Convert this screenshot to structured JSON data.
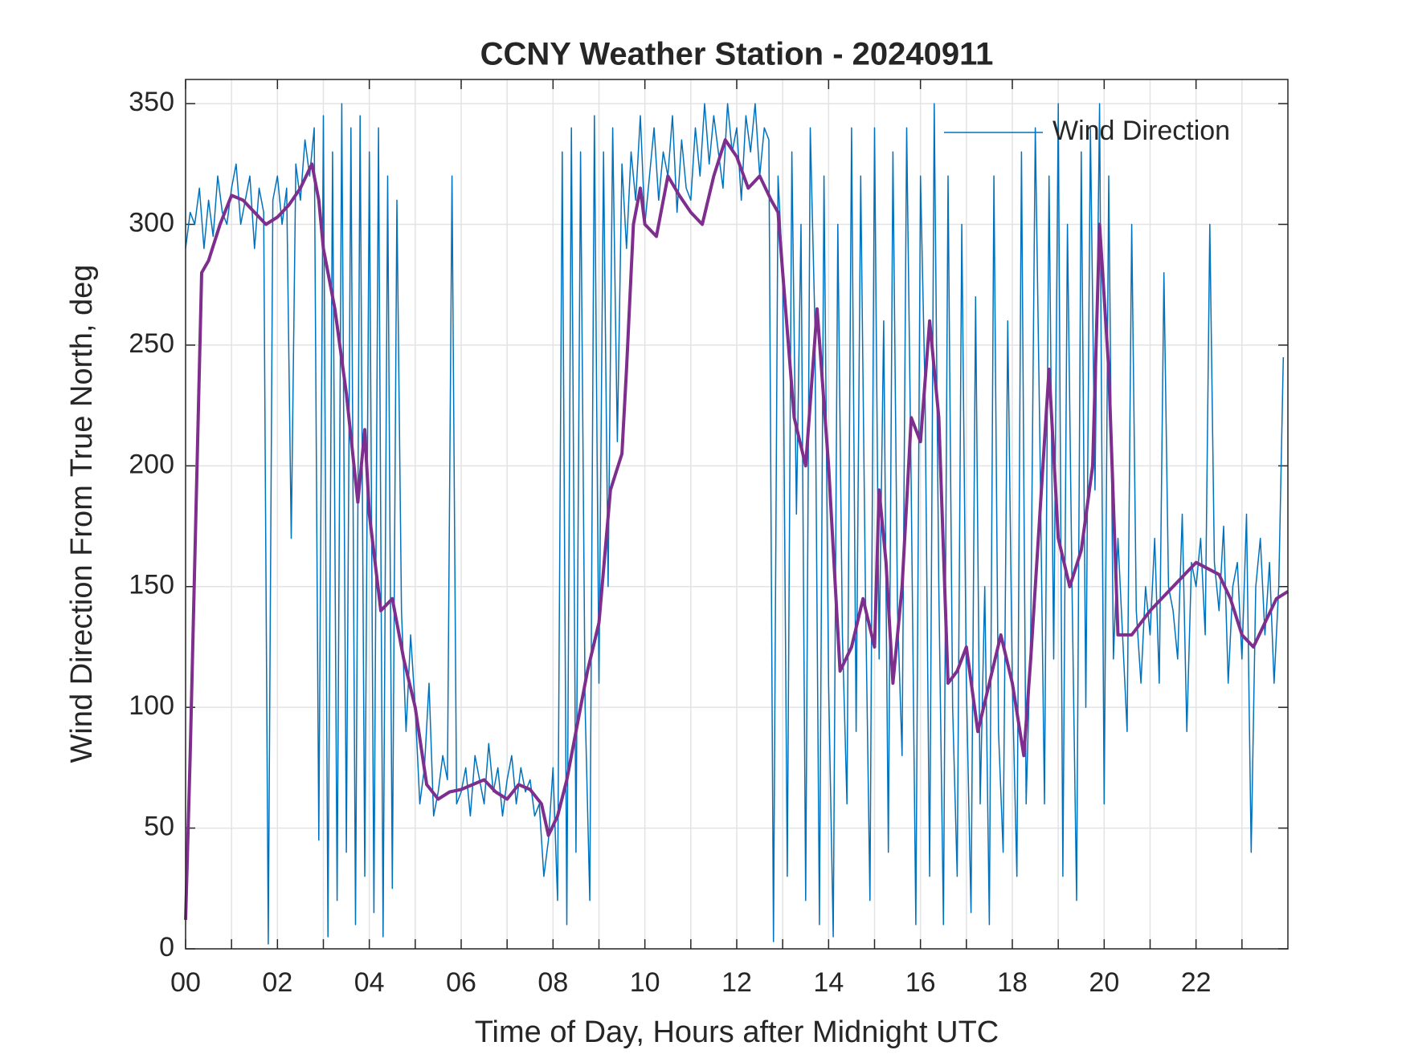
{
  "chart_data": {
    "type": "line",
    "title": "CCNY Weather Station - 20240911",
    "xlabel": "Time of Day, Hours after Midnight UTC",
    "ylabel": "Wind Direction From True North, deg",
    "xlim": [
      0,
      24
    ],
    "ylim": [
      0,
      360
    ],
    "xticks": [
      {
        "value": 0,
        "label": "00"
      },
      {
        "value": 2,
        "label": "02"
      },
      {
        "value": 4,
        "label": "04"
      },
      {
        "value": 6,
        "label": "06"
      },
      {
        "value": 8,
        "label": "08"
      },
      {
        "value": 10,
        "label": "10"
      },
      {
        "value": 12,
        "label": "12"
      },
      {
        "value": 14,
        "label": "14"
      },
      {
        "value": 16,
        "label": "16"
      },
      {
        "value": 18,
        "label": "18"
      },
      {
        "value": 20,
        "label": "20"
      },
      {
        "value": 22,
        "label": "22"
      }
    ],
    "xminor_ticks": [
      1,
      3,
      5,
      7,
      9,
      11,
      13,
      15,
      17,
      19,
      21,
      23
    ],
    "yticks": [
      0,
      50,
      100,
      150,
      200,
      250,
      300,
      350
    ],
    "grid": true,
    "legend": "upper right",
    "series": [
      {
        "name": "Wind Direction",
        "color": "#0072BD",
        "width": 1.5,
        "x": [
          0,
          0.1,
          0.2,
          0.3,
          0.4,
          0.5,
          0.6,
          0.7,
          0.8,
          0.9,
          1,
          1.1,
          1.2,
          1.3,
          1.4,
          1.5,
          1.6,
          1.7,
          1.8,
          1.9,
          2,
          2.1,
          2.2,
          2.3,
          2.4,
          2.5,
          2.6,
          2.7,
          2.8,
          2.9,
          3,
          3.1,
          3.2,
          3.3,
          3.4,
          3.5,
          3.6,
          3.7,
          3.8,
          3.9,
          4,
          4.1,
          4.2,
          4.3,
          4.4,
          4.5,
          4.6,
          4.7,
          4.8,
          4.9,
          5,
          5.1,
          5.2,
          5.3,
          5.4,
          5.5,
          5.6,
          5.7,
          5.8,
          5.9,
          6,
          6.1,
          6.2,
          6.3,
          6.4,
          6.5,
          6.6,
          6.7,
          6.8,
          6.9,
          7,
          7.1,
          7.2,
          7.3,
          7.4,
          7.5,
          7.6,
          7.7,
          7.8,
          7.9,
          8,
          8.1,
          8.2,
          8.3,
          8.4,
          8.5,
          8.6,
          8.7,
          8.8,
          8.9,
          9,
          9.1,
          9.2,
          9.3,
          9.4,
          9.5,
          9.6,
          9.7,
          9.8,
          9.9,
          10,
          10.1,
          10.2,
          10.3,
          10.4,
          10.5,
          10.6,
          10.7,
          10.8,
          10.9,
          11,
          11.1,
          11.2,
          11.3,
          11.4,
          11.5,
          11.6,
          11.7,
          11.8,
          11.9,
          12,
          12.1,
          12.2,
          12.3,
          12.4,
          12.5,
          12.6,
          12.7,
          12.8,
          12.9,
          13,
          13.1,
          13.2,
          13.3,
          13.4,
          13.5,
          13.6,
          13.7,
          13.8,
          13.9,
          14,
          14.1,
          14.2,
          14.3,
          14.4,
          14.5,
          14.6,
          14.7,
          14.8,
          14.9,
          15,
          15.1,
          15.2,
          15.3,
          15.4,
          15.5,
          15.6,
          15.7,
          15.8,
          15.9,
          16,
          16.1,
          16.2,
          16.3,
          16.4,
          16.5,
          16.6,
          16.7,
          16.8,
          16.9,
          17,
          17.1,
          17.2,
          17.3,
          17.4,
          17.5,
          17.6,
          17.7,
          17.8,
          17.9,
          18,
          18.1,
          18.2,
          18.3,
          18.4,
          18.5,
          18.6,
          18.7,
          18.8,
          18.9,
          19,
          19.1,
          19.2,
          19.3,
          19.4,
          19.5,
          19.6,
          19.7,
          19.8,
          19.9,
          20,
          20.1,
          20.2,
          20.3,
          20.4,
          20.5,
          20.6,
          20.7,
          20.8,
          20.9,
          21,
          21.1,
          21.2,
          21.3,
          21.4,
          21.5,
          21.6,
          21.7,
          21.8,
          21.9,
          22,
          22.1,
          22.2,
          22.3,
          22.4,
          22.5,
          22.6,
          22.7,
          22.8,
          22.9,
          23,
          23.1,
          23.2,
          23.3,
          23.4,
          23.5,
          23.6,
          23.7,
          23.8,
          23.9
        ],
        "values": [
          290,
          305,
          300,
          315,
          290,
          310,
          295,
          320,
          305,
          300,
          315,
          325,
          300,
          310,
          320,
          290,
          315,
          305,
          2,
          310,
          320,
          300,
          315,
          170,
          325,
          310,
          335,
          320,
          340,
          45,
          345,
          5,
          330,
          20,
          350,
          40,
          340,
          10,
          345,
          30,
          330,
          15,
          340,
          5,
          320,
          25,
          310,
          140,
          90,
          130,
          100,
          60,
          75,
          110,
          55,
          65,
          80,
          70,
          320,
          60,
          65,
          75,
          55,
          80,
          70,
          60,
          85,
          65,
          75,
          55,
          70,
          80,
          60,
          75,
          65,
          70,
          55,
          60,
          30,
          45,
          75,
          20,
          330,
          10,
          340,
          40,
          330,
          100,
          20,
          345,
          110,
          330,
          150,
          340,
          210,
          325,
          290,
          330,
          310,
          345,
          300,
          320,
          340,
          310,
          330,
          320,
          345,
          305,
          335,
          315,
          310,
          340,
          320,
          350,
          325,
          345,
          330,
          315,
          350,
          330,
          340,
          310,
          345,
          330,
          350,
          320,
          340,
          335,
          3,
          320,
          280,
          30,
          330,
          180,
          300,
          20,
          340,
          260,
          10,
          320,
          110,
          5,
          300,
          130,
          60,
          340,
          90,
          320,
          150,
          20,
          340,
          120,
          260,
          40,
          330,
          140,
          80,
          340,
          190,
          10,
          320,
          230,
          30,
          350,
          150,
          10,
          320,
          100,
          30,
          300,
          110,
          15,
          270,
          60,
          150,
          10,
          320,
          90,
          40,
          260,
          110,
          30,
          330,
          60,
          130,
          340,
          210,
          60,
          320,
          120,
          350,
          30,
          300,
          150,
          20,
          330,
          100,
          340,
          190,
          350,
          60,
          320,
          120,
          170,
          130,
          90,
          300,
          140,
          110,
          150,
          130,
          170,
          110,
          280,
          150,
          140,
          120,
          180,
          90,
          160,
          150,
          170,
          130,
          300,
          160,
          140,
          175,
          110,
          150,
          160,
          120,
          180,
          40,
          150,
          170,
          130,
          160,
          110,
          150,
          245
        ]
      },
      {
        "color": "#7E2F8E",
        "width": 4,
        "x": [
          0,
          0.1,
          0.2,
          0.35,
          0.5,
          0.75,
          1,
          1.25,
          1.5,
          1.75,
          2,
          2.25,
          2.5,
          2.75,
          2.9,
          3,
          3.25,
          3.5,
          3.75,
          3.9,
          4,
          4.25,
          4.5,
          4.75,
          5,
          5.25,
          5.5,
          5.75,
          6,
          6.25,
          6.5,
          6.75,
          7,
          7.25,
          7.5,
          7.75,
          7.9,
          8.1,
          8.3,
          8.5,
          8.75,
          9,
          9.25,
          9.5,
          9.6,
          9.75,
          9.9,
          10,
          10.25,
          10.5,
          10.75,
          11,
          11.25,
          11.5,
          11.75,
          12,
          12.25,
          12.5,
          12.75,
          12.9,
          13,
          13.25,
          13.5,
          13.75,
          14,
          14.25,
          14.5,
          14.75,
          15,
          15.1,
          15.25,
          15.4,
          15.6,
          15.8,
          16,
          16.2,
          16.4,
          16.6,
          16.8,
          17,
          17.25,
          17.5,
          17.75,
          18,
          18.25,
          18.4,
          18.6,
          18.8,
          19,
          19.25,
          19.5,
          19.75,
          19.9,
          20.1,
          20.3,
          20.6,
          21,
          21.5,
          22,
          22.5,
          22.75,
          23,
          23.25,
          23.5,
          23.75,
          24
        ],
        "values": [
          12,
          80,
          160,
          280,
          285,
          300,
          312,
          310,
          305,
          300,
          303,
          308,
          315,
          325,
          310,
          290,
          265,
          230,
          185,
          215,
          180,
          140,
          145,
          120,
          100,
          68,
          62,
          65,
          66,
          68,
          70,
          65,
          62,
          68,
          66,
          60,
          47,
          55,
          70,
          90,
          115,
          135,
          190,
          205,
          240,
          300,
          315,
          300,
          295,
          320,
          312,
          305,
          300,
          320,
          335,
          328,
          315,
          320,
          310,
          305,
          280,
          220,
          200,
          265,
          200,
          115,
          125,
          145,
          125,
          190,
          160,
          110,
          150,
          220,
          210,
          260,
          220,
          110,
          115,
          125,
          90,
          110,
          130,
          110,
          80,
          120,
          180,
          240,
          170,
          150,
          165,
          200,
          300,
          240,
          130,
          130,
          140,
          150,
          160,
          155,
          145,
          130,
          125,
          135,
          145,
          148
        ]
      }
    ]
  }
}
